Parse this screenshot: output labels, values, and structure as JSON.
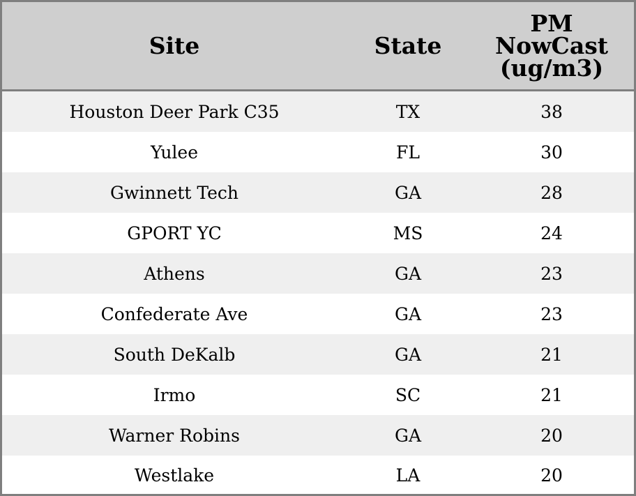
{
  "chart_data": {
    "type": "table",
    "columns": [
      "Site",
      "State",
      "PM NowCast (ug/m3)"
    ],
    "header": {
      "site": "Site",
      "state": "State",
      "pm_lines": [
        "PM",
        "NowCast",
        "(ug/m3)"
      ]
    },
    "rows": [
      {
        "site": "Houston Deer Park C35",
        "state": "TX",
        "pm": "38"
      },
      {
        "site": "Yulee",
        "state": "FL",
        "pm": "30"
      },
      {
        "site": "Gwinnett Tech",
        "state": "GA",
        "pm": "28"
      },
      {
        "site": "GPORT YC",
        "state": "MS",
        "pm": "24"
      },
      {
        "site": "Athens",
        "state": "GA",
        "pm": "23"
      },
      {
        "site": "Confederate Ave",
        "state": "GA",
        "pm": "23"
      },
      {
        "site": "South DeKalb",
        "state": "GA",
        "pm": "21"
      },
      {
        "site": "Irmo",
        "state": "SC",
        "pm": "21"
      },
      {
        "site": "Warner Robins",
        "state": "GA",
        "pm": "20"
      },
      {
        "site": "Westlake",
        "state": "LA",
        "pm": "20"
      }
    ]
  },
  "colors": {
    "header_bg": "#cfcfcf",
    "stripe_bg": "#efefef",
    "border": "#7f7f7f"
  }
}
